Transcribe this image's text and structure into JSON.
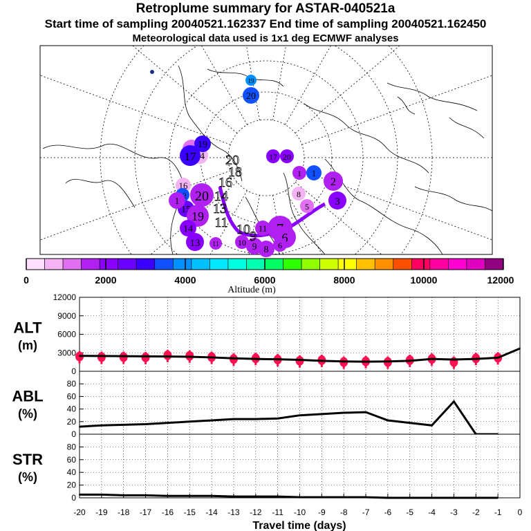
{
  "header": {
    "title": "Retroplume summary for ASTAR-040521a",
    "sampling": "Start time of sampling 20040521.162337      End time of sampling 20040521.162450",
    "met": "Meteorological data used is 1x1 deg ECMWF analyses"
  },
  "colors": {
    "scale": [
      "#ffe0ff",
      "#f4b4f4",
      "#e070f0",
      "#b020f0",
      "#8a00ff",
      "#6a00ff",
      "#3a00ff",
      "#1050ff",
      "#0090ff",
      "#00c0ff",
      "#00e8ff",
      "#00ffe0",
      "#00ffb0",
      "#00ff60",
      "#30ff00",
      "#90ff00",
      "#d0ff00",
      "#ffff00",
      "#ffc000",
      "#ff9000",
      "#ff5000",
      "#ff0060",
      "#ff00a0",
      "#ff00d0",
      "#e000c0",
      "#900080"
    ],
    "alt_marker": "#ff1050",
    "line": "#000000"
  },
  "map": {
    "labels": [
      {
        "text": "19",
        "alt": 3800
      },
      {
        "text": "20",
        "alt": 3400
      },
      {
        "text": "12",
        "alt": 1200
      },
      {
        "text": "14",
        "alt": 900
      },
      {
        "text": "16",
        "alt": 700
      },
      {
        "text": "15",
        "alt": 2500
      },
      {
        "text": "17",
        "alt": 2300
      },
      {
        "text": "20",
        "alt": 2300
      },
      {
        "text": "19",
        "alt": 2900
      },
      {
        "text": "17",
        "alt": 3200
      },
      {
        "text": "1",
        "alt": 3300
      },
      {
        "text": "1",
        "alt": 1500
      },
      {
        "text": "2",
        "alt": 1700
      },
      {
        "text": "8",
        "alt": 800
      },
      {
        "text": "5",
        "alt": 1000
      },
      {
        "text": "3",
        "alt": 2100
      },
      {
        "text": "12",
        "alt": 3600
      },
      {
        "text": "20",
        "alt": 1800
      },
      {
        "text": "1",
        "alt": 1700
      },
      {
        "text": "19",
        "alt": 1700
      },
      {
        "text": "14",
        "alt": 2300
      },
      {
        "text": "13",
        "alt": 1900
      },
      {
        "text": "11",
        "alt": 1700
      },
      {
        "text": "11",
        "alt": 1500
      },
      {
        "text": "7",
        "alt": 1600
      },
      {
        "text": "6",
        "alt": 1700
      },
      {
        "text": "10",
        "alt": 1400
      },
      {
        "text": "9",
        "alt": 1500
      },
      {
        "text": "8",
        "alt": 1600
      },
      {
        "text": "6",
        "alt": 1600
      }
    ],
    "path_labels": [
      {
        "text": "20"
      },
      {
        "text": "18"
      },
      {
        "text": "16"
      },
      {
        "text": "14"
      },
      {
        "text": "13"
      },
      {
        "text": "11"
      },
      {
        "text": "10"
      },
      {
        "text": "9"
      }
    ]
  },
  "colorbar": {
    "ticks": [
      "0",
      "2000",
      "4000",
      "6000",
      "8000",
      "10000",
      "12000"
    ],
    "label": "Altitude (m)"
  },
  "chart_data": [
    {
      "type": "line",
      "name": "ALT",
      "ylabel": "ALT",
      "yunit": "(m)",
      "ylim": [
        0,
        12000
      ],
      "yticks": [
        "0",
        "3000",
        "6000",
        "9000",
        "12000"
      ],
      "x": [
        -20,
        -19,
        -18,
        -17,
        -16,
        -15,
        -14,
        -13,
        -12,
        -11,
        -10,
        -9,
        -8,
        -7,
        -6,
        -5,
        -4,
        -3,
        -2,
        -1,
        0
      ],
      "values": [
        2500,
        2480,
        2450,
        2430,
        2400,
        2350,
        2250,
        2100,
        2000,
        1950,
        1850,
        1700,
        1600,
        1550,
        1600,
        1700,
        2000,
        1900,
        2000,
        2200,
        3700
      ],
      "markers": [
        {
          "x": -20,
          "y": 2400
        },
        {
          "x": -19,
          "y": 2300
        },
        {
          "x": -18,
          "y": 2300
        },
        {
          "x": -17,
          "y": 2250
        },
        {
          "x": -16,
          "y": 2600
        },
        {
          "x": -15,
          "y": 2500
        },
        {
          "x": -14,
          "y": 2300
        },
        {
          "x": -13,
          "y": 2000
        },
        {
          "x": -12,
          "y": 2100
        },
        {
          "x": -11,
          "y": 1900
        },
        {
          "x": -10,
          "y": 1700
        },
        {
          "x": -9,
          "y": 1800
        },
        {
          "x": -8,
          "y": 1500
        },
        {
          "x": -7,
          "y": 1600
        },
        {
          "x": -6,
          "y": 1500
        },
        {
          "x": -5,
          "y": 1800
        },
        {
          "x": -4,
          "y": 2000
        },
        {
          "x": -3,
          "y": 1500
        },
        {
          "x": -2,
          "y": 2100
        },
        {
          "x": -1,
          "y": 2200
        }
      ]
    },
    {
      "type": "line",
      "name": "ABL",
      "ylabel": "ABL",
      "yunit": "(%)",
      "ylim": [
        0,
        100
      ],
      "yticks": [
        "0",
        "20",
        "40",
        "60",
        "80"
      ],
      "x": [
        -20,
        -19,
        -18,
        -17,
        -16,
        -15,
        -14,
        -13,
        -12,
        -11,
        -10,
        -9,
        -8,
        -7,
        -6,
        -5,
        -4,
        -3,
        -2,
        -1
      ],
      "values": [
        12,
        14,
        15,
        16,
        18,
        20,
        22,
        24,
        24,
        25,
        30,
        32,
        34,
        35,
        22,
        18,
        14,
        52,
        0,
        0
      ]
    },
    {
      "type": "line",
      "name": "STR",
      "ylabel": "STR",
      "yunit": "(%)",
      "ylim": [
        0,
        100
      ],
      "yticks": [
        "0",
        "20",
        "40",
        "60",
        "80"
      ],
      "x": [
        -20,
        -19,
        -18,
        -17,
        -16,
        -15,
        -14,
        -13,
        -12,
        -11,
        -10,
        -9,
        -8,
        -7,
        -6,
        -5,
        -4,
        -3,
        -2,
        -1
      ],
      "values": [
        5,
        5,
        4,
        4,
        3,
        3,
        3,
        2,
        2,
        2,
        1,
        1,
        1,
        1,
        0,
        0,
        0,
        0,
        0,
        0
      ]
    }
  ],
  "xaxis": {
    "ticks": [
      "-20",
      "-19",
      "-18",
      "-17",
      "-16",
      "-15",
      "-14",
      "-13",
      "-12",
      "-11",
      "-10",
      "-9",
      "-8",
      "-7",
      "-6",
      "-5",
      "-4",
      "-3",
      "-2",
      "-1",
      "0"
    ],
    "label": "Travel time (days)"
  }
}
